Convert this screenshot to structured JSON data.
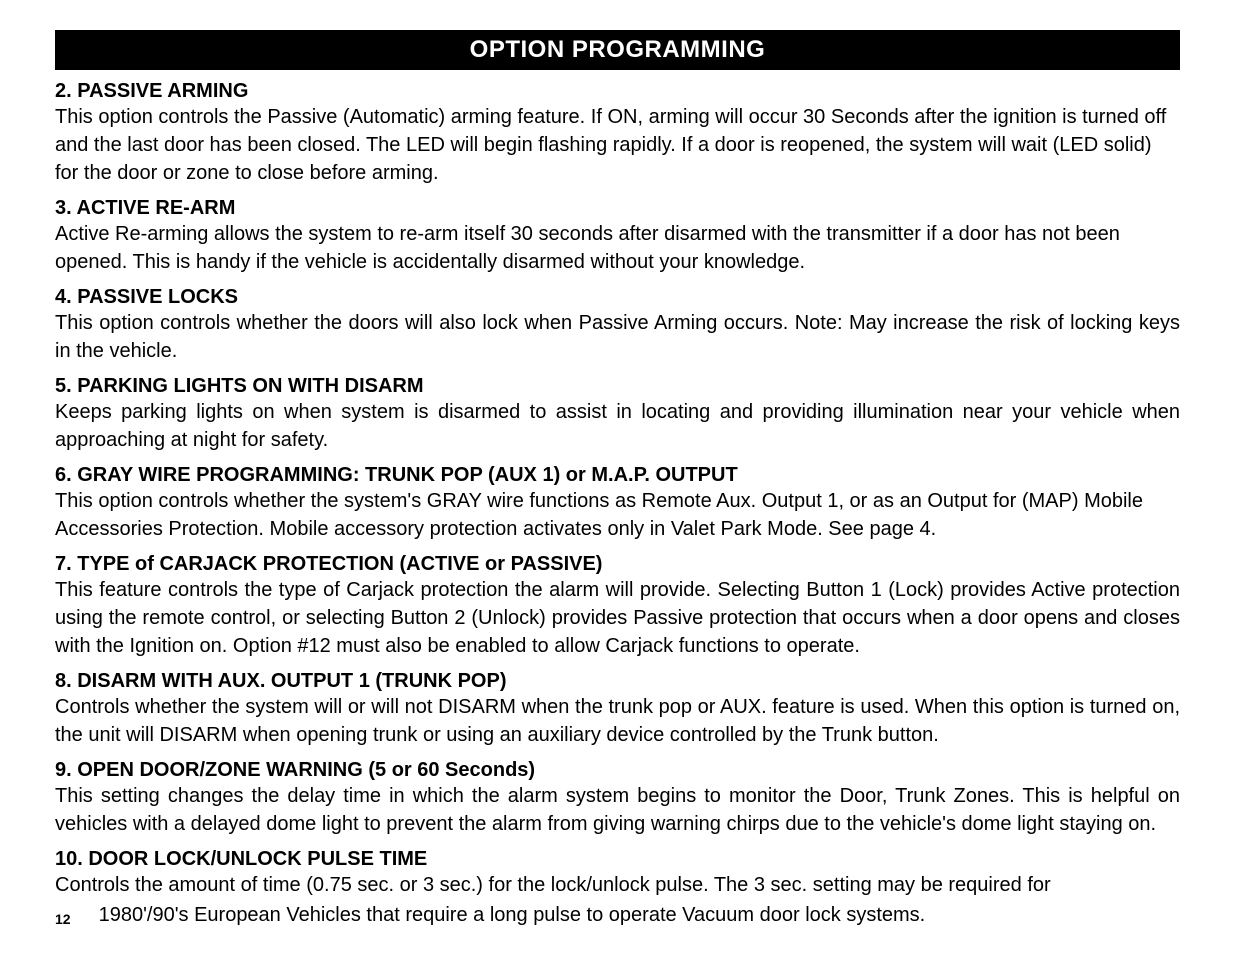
{
  "header": {
    "title": "OPTION PROGRAMMING"
  },
  "sections": [
    {
      "title": "2. PASSIVE ARMING",
      "body": "This option controls the Passive (Automatic) arming feature.  If ON, arming will occur 30 Seconds after the ignition is turned off and the last door has been closed.  The LED will begin flashing rapidly.  If a door is reopened, the system will wait (LED solid) for the door or zone to close before arming.",
      "justify": false
    },
    {
      "title": "3. ACTIVE RE-ARM",
      "body": "Active Re-arming allows the system to re-arm itself 30 seconds after disarmed with the transmitter if a door has not been opened.  This is handy if the vehicle is accidentally disarmed without your knowledge.",
      "justify": false
    },
    {
      "title": "4. PASSIVE LOCKS",
      "body": "This option controls whether the doors will also lock when Passive Arming occurs.  Note: May increase the risk of locking keys in the vehicle.",
      "justify": true
    },
    {
      "title": "5. PARKING LIGHTS ON WITH DISARM",
      "body": "Keeps parking lights on when system is disarmed to assist in locating and providing illumination near your vehicle when approaching at night for safety.",
      "justify": true
    },
    {
      "title": "6. GRAY WIRE PROGRAMMING:  TRUNK POP (AUX 1) or M.A.P. OUTPUT",
      "body": "This option controls whether the system's GRAY wire functions as Remote Aux. Output 1, or as an Output for (MAP) Mobile Accessories Protection.  Mobile accessory protection activates only in Valet Park Mode.  See page 4.",
      "justify": false
    },
    {
      "title": "7. TYPE of CARJACK PROTECTION (ACTIVE or PASSIVE)",
      "body": "This feature controls the type of Carjack protection the alarm will provide.  Selecting Button 1 (Lock) provides Active protection using the remote control, or selecting Button 2 (Unlock) provides Passive protection that occurs when a door opens and closes with the Ignition on.  Option #12 must also be enabled to allow Carjack functions to operate.",
      "justify": true
    },
    {
      "title": "8. DISARM WITH AUX. OUTPUT 1 (TRUNK POP)",
      "body": "Controls whether the system will or will not DISARM when the trunk pop or AUX. feature is used.  When this option is turned on, the unit will DISARM when opening trunk or using an auxiliary device controlled by the Trunk button.",
      "justify": true
    },
    {
      "title": "9. OPEN DOOR/ZONE WARNING (5 or 60 Seconds)",
      "body": "This setting changes the delay time in which the alarm system begins to monitor the Door, Trunk Zones.  This is helpful on vehicles with a delayed dome light to prevent the alarm from giving warning chirps due to the vehicle's dome light staying on.",
      "justify": true
    },
    {
      "title": "10. DOOR LOCK/UNLOCK PULSE TIME",
      "body": "Controls the amount of time (0.75 sec. or 3 sec.) for the lock/unlock pulse.  The 3 sec. setting may be required for",
      "justify": false
    }
  ],
  "footer": {
    "page_number": "12",
    "continued_line": "1980'/90's European Vehicles that require a long pulse to operate Vacuum door lock systems."
  }
}
